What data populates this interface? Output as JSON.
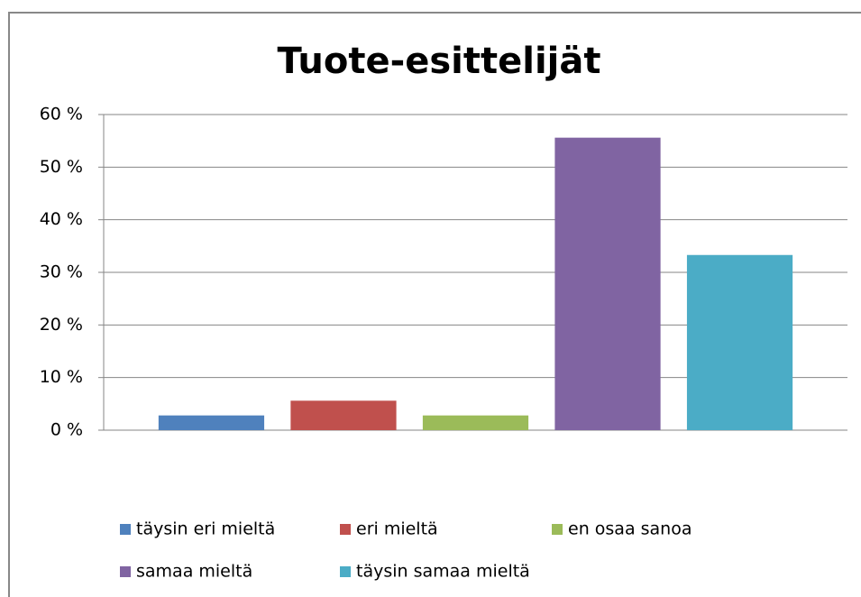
{
  "chart_data": {
    "type": "bar",
    "title": "Tuote-esittelijät",
    "categories": [
      null
    ],
    "series": [
      {
        "name": "täysin eri mieltä",
        "color": "#4f81bd",
        "values": [
          2.8
        ]
      },
      {
        "name": "eri mieltä",
        "color": "#c0504d",
        "values": [
          5.6
        ]
      },
      {
        "name": "en osaa sanoa",
        "color": "#9bbb59",
        "values": [
          2.8
        ]
      },
      {
        "name": "samaa mieltä",
        "color": "#8064a2",
        "values": [
          55.6
        ]
      },
      {
        "name": "täysin samaa mieltä",
        "color": "#4bacc6",
        "values": [
          33.3
        ]
      }
    ],
    "ylim": [
      0,
      60
    ],
    "yticks": [
      {
        "value": 0,
        "label": "0 %"
      },
      {
        "value": 10,
        "label": "10 %"
      },
      {
        "value": 20,
        "label": "20 %"
      },
      {
        "value": 30,
        "label": "30 %"
      },
      {
        "value": 40,
        "label": "40 %"
      },
      {
        "value": 50,
        "label": "50 %"
      },
      {
        "value": 60,
        "label": "60 %"
      }
    ],
    "grid": true
  }
}
